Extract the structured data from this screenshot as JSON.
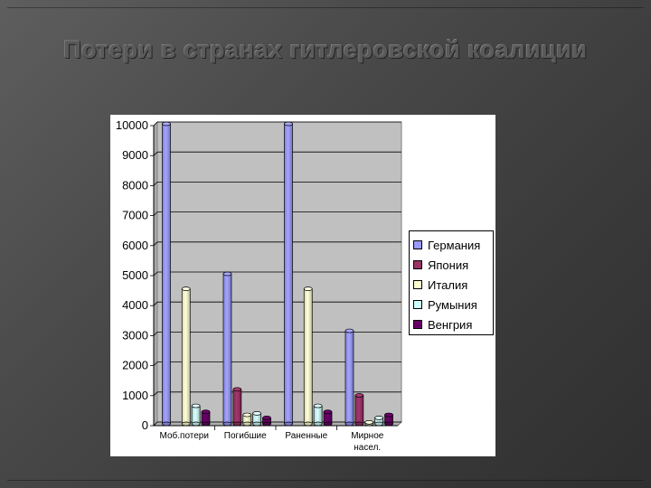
{
  "slide": {
    "title": "Потери в странах  гитлеровской коалиции"
  },
  "chart_data": {
    "type": "bar",
    "style": "3d-cylinder",
    "categories": [
      "Моб.потери",
      "Погибшие",
      "Раненные",
      "Мирное насел."
    ],
    "category_lines": [
      [
        "Моб.потери"
      ],
      [
        "Погибшие"
      ],
      [
        "Раненные"
      ],
      [
        "Мирное",
        "насел."
      ]
    ],
    "series": [
      {
        "name": "Германия",
        "color": "#9999ff",
        "values": [
          10000,
          5000,
          10000,
          3100
        ]
      },
      {
        "name": "Япония",
        "color": "#993366",
        "values": [
          0,
          1150,
          0,
          950
        ]
      },
      {
        "name": "Италия",
        "color": "#ffffcc",
        "values": [
          4500,
          300,
          4500,
          50
        ]
      },
      {
        "name": "Румыния",
        "color": "#ccffff",
        "values": [
          600,
          350,
          600,
          200
        ]
      },
      {
        "name": "Венгрия",
        "color": "#660066",
        "values": [
          400,
          200,
          400,
          300
        ]
      }
    ],
    "ylim": [
      0,
      10000
    ],
    "yticks": [
      0,
      1000,
      2000,
      3000,
      4000,
      5000,
      6000,
      7000,
      8000,
      9000,
      10000
    ],
    "ytick_labels": [
      "0",
      "1000",
      "2000",
      "3000",
      "4000",
      "5000",
      "6000",
      "7000",
      "8000",
      "9000",
      "10000"
    ],
    "plot_background": "#c0c0c0",
    "grid": true,
    "legend_position": "right"
  }
}
